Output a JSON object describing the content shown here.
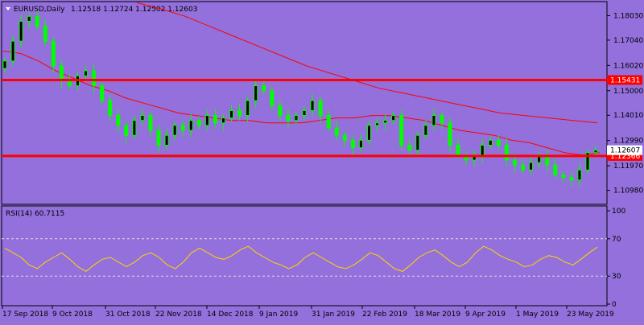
{
  "header": {
    "symbol": "EURUSD,Daily",
    "ohlc": "1.12518 1.12724 1.12502 1.12603"
  },
  "rsi_panel": {
    "label": "RSI(14) 60.7115"
  },
  "colors": {
    "background": "#9370DB",
    "bull_candle": "#00FF00",
    "bear_candle": "#00FF00",
    "ma_line": "#FF0000",
    "support_line": "#FF0000",
    "rsi_line": "#FFD700",
    "price_tag": "#FF0000"
  },
  "chart_data": [
    {
      "type": "candlestick",
      "title": "EURUSD,Daily",
      "y_ticks": [
        "1.18030",
        "1.17040",
        "1.16020",
        "1.15000",
        "1.14010",
        "1.12990",
        "1.11970",
        "1.10980"
      ],
      "ylim": [
        1.1048,
        1.1853
      ],
      "x_ticks": [
        "17 Sep 2018",
        "9 Oct 2018",
        "31 Oct 2018",
        "22 Nov 2018",
        "14 Dec 2018",
        "9 Jan 2019",
        "31 Jan 2019",
        "22 Feb 2019",
        "18 Mar 2019",
        "9 Apr 2019",
        "1 May 2019",
        "23 May 2019"
      ],
      "current_price_label": "1.12607",
      "horizontal_levels": [
        {
          "label": "1.15431",
          "value": 1.15431
        },
        {
          "label": "1.12366",
          "value": 1.12366
        }
      ],
      "close_approx": [
        1.162,
        1.17,
        1.178,
        1.18,
        1.176,
        1.17,
        1.16,
        1.154,
        1.152,
        1.156,
        1.158,
        1.152,
        1.146,
        1.14,
        1.136,
        1.132,
        1.138,
        1.14,
        1.134,
        1.128,
        1.132,
        1.136,
        1.134,
        1.138,
        1.136,
        1.14,
        1.137,
        1.139,
        1.142,
        1.14,
        1.146,
        1.152,
        1.15,
        1.144,
        1.14,
        1.138,
        1.14,
        1.142,
        1.146,
        1.14,
        1.135,
        1.132,
        1.13,
        1.127,
        1.13,
        1.136,
        1.137,
        1.138,
        1.14,
        1.128,
        1.126,
        1.132,
        1.136,
        1.14,
        1.137,
        1.128,
        1.124,
        1.122,
        1.124,
        1.128,
        1.13,
        1.128,
        1.122,
        1.12,
        1.118,
        1.121,
        1.124,
        1.12,
        1.116,
        1.115,
        1.114,
        1.118,
        1.125,
        1.126
      ],
      "ma_fast_approx": [
        1.166,
        1.165,
        1.162,
        1.158,
        1.155,
        1.152,
        1.15,
        1.147,
        1.145,
        1.143,
        1.141,
        1.14,
        1.139,
        1.138,
        1.138,
        1.137,
        1.137,
        1.137,
        1.138,
        1.139,
        1.139,
        1.14,
        1.14,
        1.139,
        1.138,
        1.136,
        1.134,
        1.133,
        1.132,
        1.13,
        1.129,
        1.127,
        1.125,
        1.124,
        1.125
      ],
      "ma_slow_approx": [
        1.1855,
        1.183,
        1.18,
        1.176,
        1.172,
        1.168,
        1.164,
        1.16,
        1.157,
        1.154,
        1.151,
        1.149,
        1.147,
        1.145,
        1.143,
        1.141,
        1.14,
        1.139,
        1.138,
        1.137
      ]
    },
    {
      "type": "line",
      "title": "RSI(14) 60.7115",
      "y_ticks": [
        "100",
        "70",
        "30",
        "0"
      ],
      "ylim": [
        0,
        100
      ],
      "levels": [
        70,
        30
      ],
      "values": [
        60,
        55,
        50,
        42,
        38,
        45,
        50,
        55,
        48,
        40,
        35,
        42,
        48,
        50,
        45,
        40,
        45,
        52,
        55,
        50,
        42,
        38,
        45,
        55,
        60,
        55,
        50,
        48,
        52,
        58,
        62,
        55,
        50,
        45,
        42,
        38,
        42,
        50,
        55,
        50,
        45,
        40,
        38,
        42,
        48,
        55,
        52,
        45,
        38,
        35,
        42,
        50,
        55,
        58,
        52,
        45,
        40,
        45,
        55,
        62,
        58,
        52,
        48,
        45,
        40,
        42,
        48,
        52,
        50,
        45,
        42,
        48,
        55,
        61
      ]
    }
  ]
}
